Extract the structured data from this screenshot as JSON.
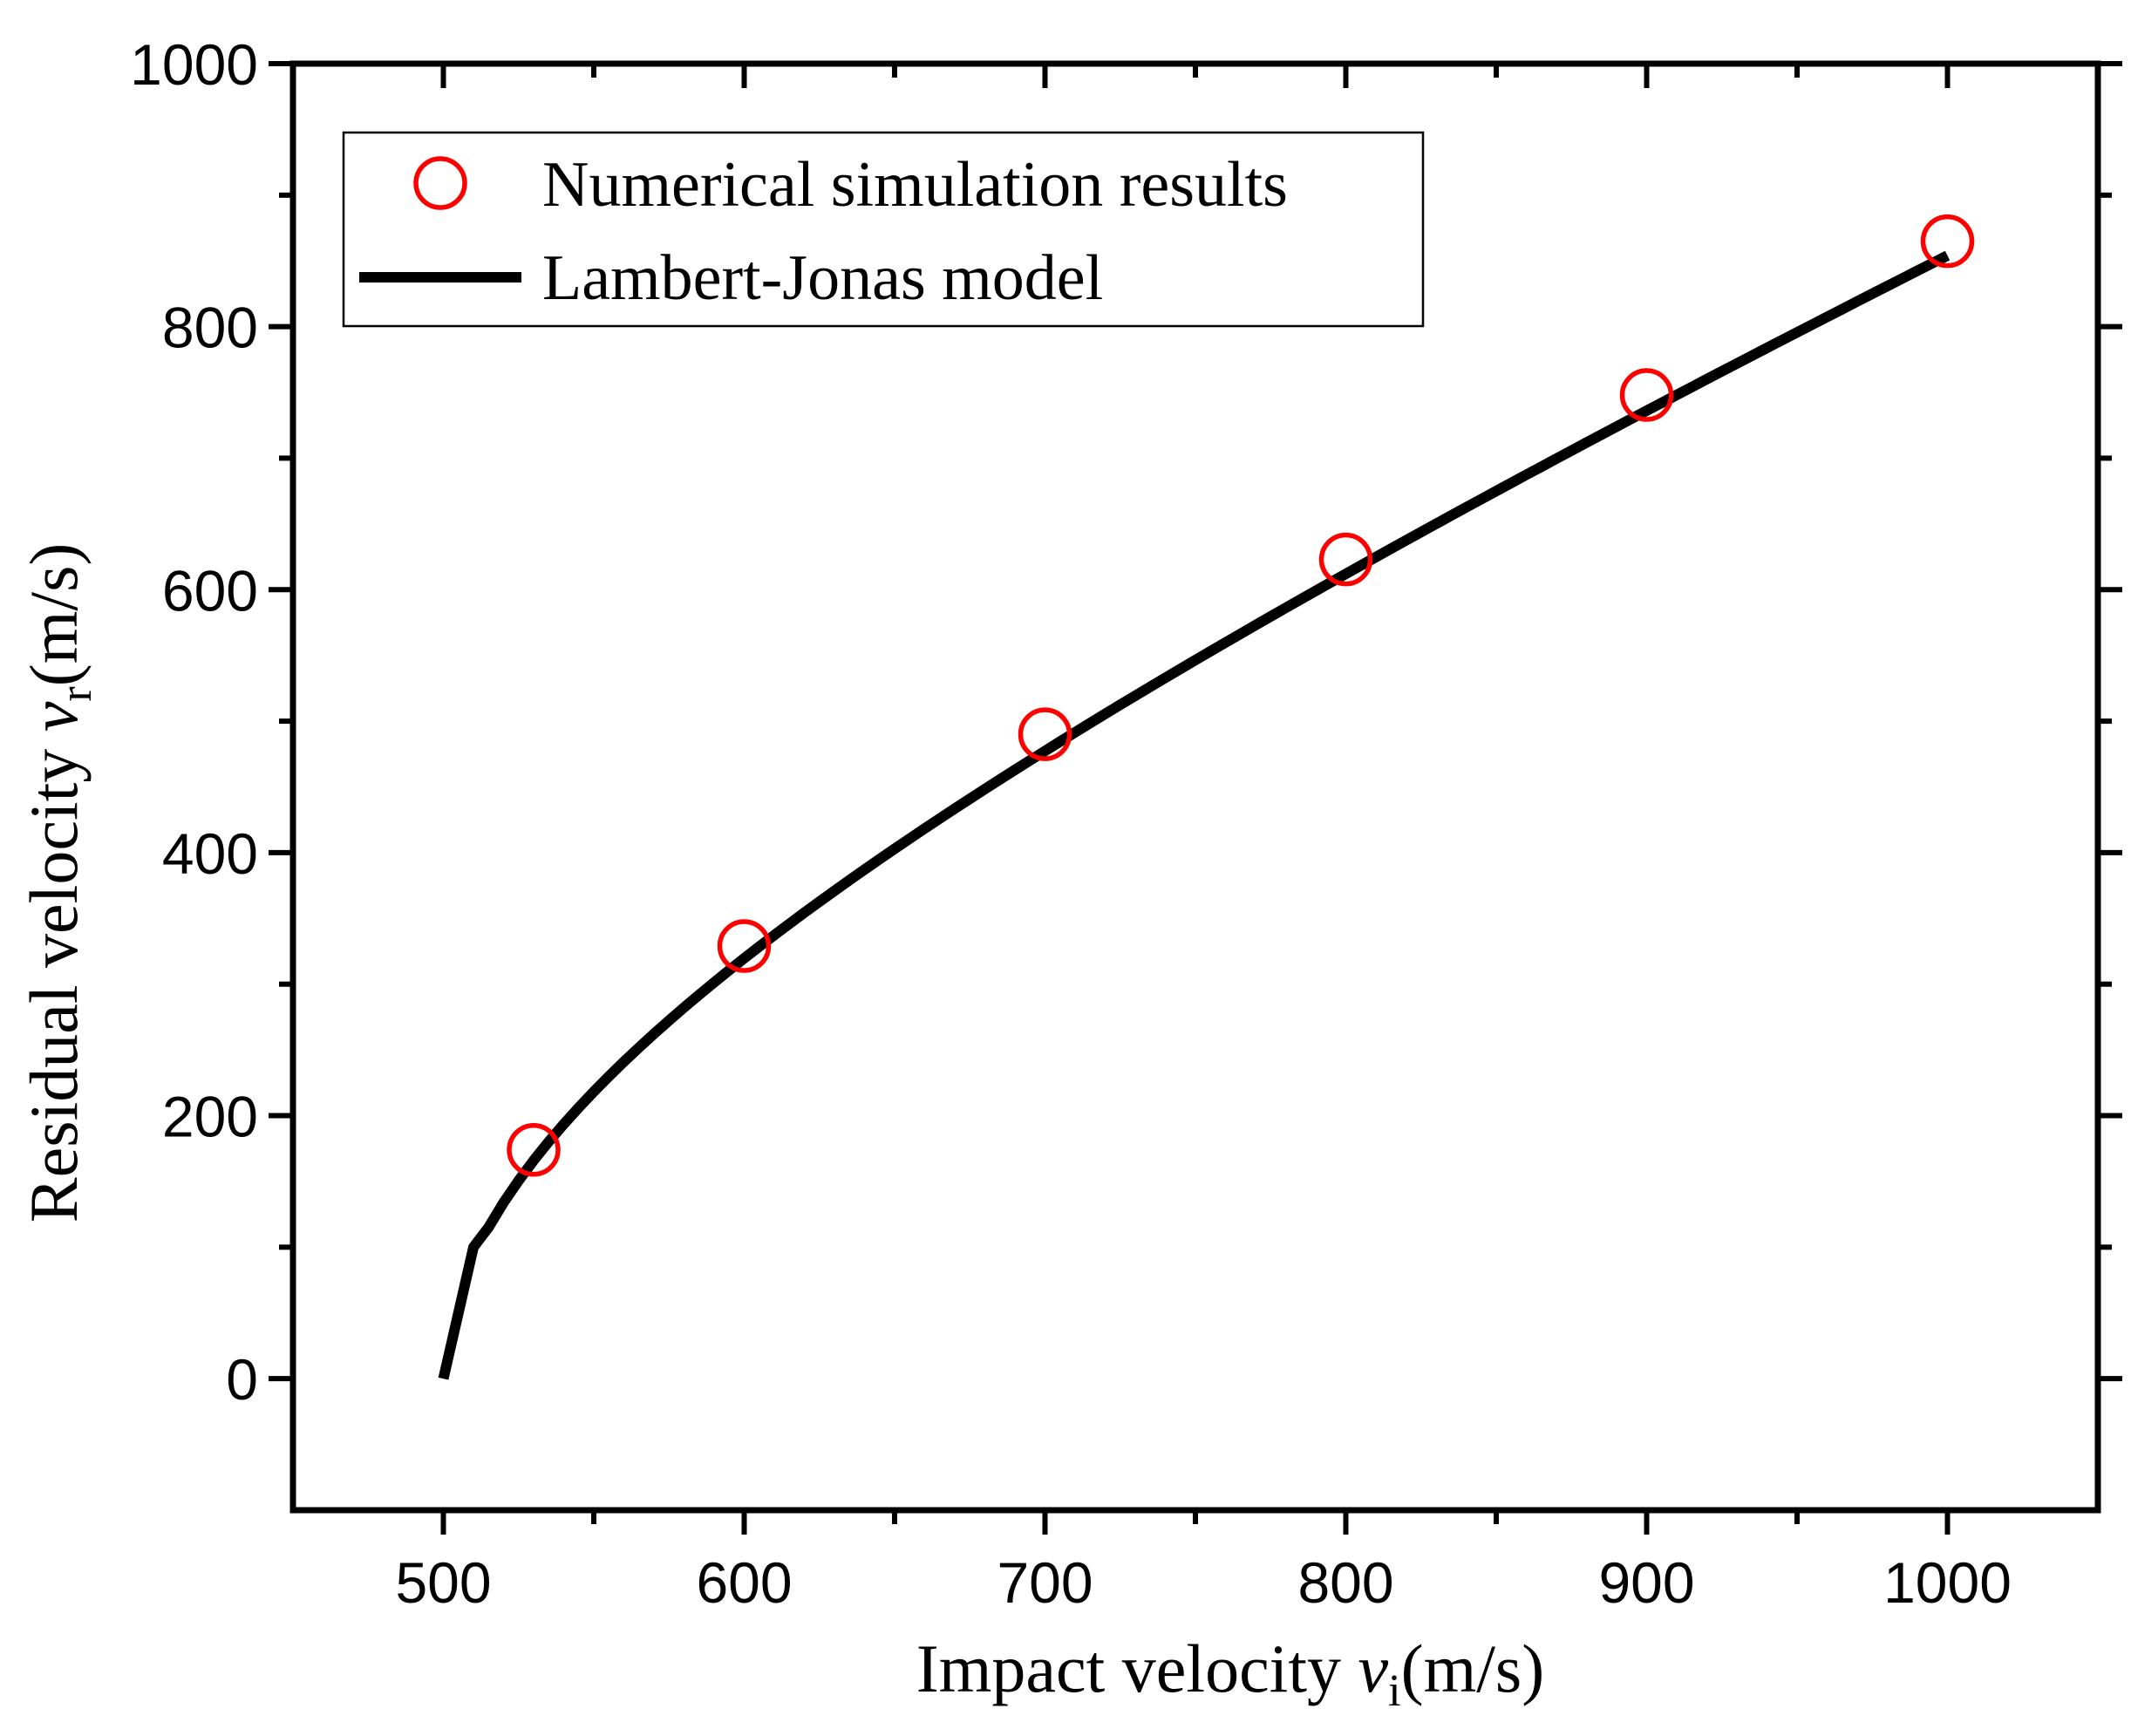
{
  "chart_data": {
    "type": "scatter",
    "title": "",
    "xlabel": {
      "prefix": "Impact velocity ",
      "var": "v",
      "sub": "i",
      "suffix": "(m/s)"
    },
    "ylabel": {
      "prefix": "Residual velocity ",
      "var": "v",
      "sub": "r",
      "suffix": "(m/s)"
    },
    "xlim": [
      450,
      1050
    ],
    "ylim": [
      -100,
      1000
    ],
    "xticks": [
      500,
      600,
      700,
      800,
      900,
      1000
    ],
    "yticks": [
      0,
      200,
      400,
      600,
      800,
      1000
    ],
    "grid": false,
    "legend_position": "top-left",
    "colors": {
      "points": "#ff0000",
      "line": "#000000",
      "axes": "#000000"
    },
    "series": [
      {
        "name": "Numerical simulation results",
        "kind": "scatter",
        "marker": "open-circle",
        "x": [
          530,
          600,
          700,
          800,
          900,
          1000
        ],
        "y": [
          174,
          329,
          490,
          623,
          748,
          865
        ]
      },
      {
        "name": "Lambert-Jonas model",
        "kind": "line",
        "model": {
          "ballistic_limit": 500,
          "a": 1,
          "p": 1.93
        },
        "x_range": [
          500,
          1000
        ],
        "samples": [
          0,
          100,
          174,
          329,
          490,
          623,
          748,
          865
        ]
      }
    ]
  }
}
